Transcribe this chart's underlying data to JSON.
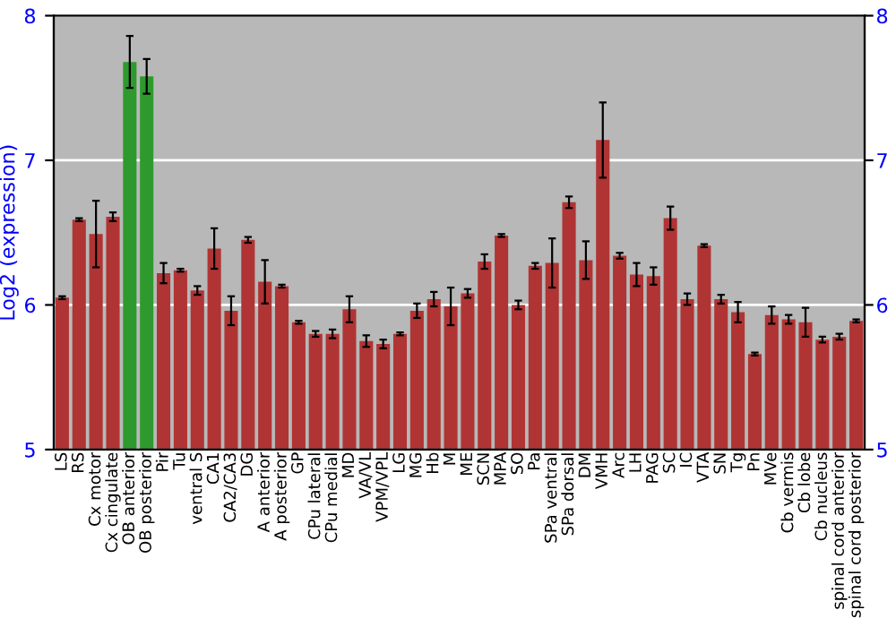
{
  "chart_data": {
    "type": "bar",
    "ylabel": "Log2 (expression)",
    "categories": [
      "LS",
      "RS",
      "Cx motor",
      "Cx cingulate",
      "OB anterior",
      "OB posterior",
      "Pir",
      "Tu",
      "ventral S",
      "CA1",
      "CA2/CA3",
      "DG",
      "A anterior",
      "A posterior",
      "GP",
      "CPu lateral",
      "CPu medial",
      "MD",
      "VA/VL",
      "VPM/VPL",
      "LG",
      "MG",
      "Hb",
      "M",
      "ME",
      "SCN",
      "MPA",
      "SO",
      "Pa",
      "SPa ventral",
      "SPa dorsal",
      "DM",
      "VMH",
      "Arc",
      "LH",
      "PAG",
      "SC",
      "IC",
      "VTA",
      "SN",
      "Tg",
      "Pn",
      "MVe",
      "Cb vermis",
      "Cb lobe",
      "Cb nucleus",
      "spinal cord anterior",
      "spinal cord posterior"
    ],
    "values": [
      6.05,
      6.59,
      6.49,
      6.61,
      7.68,
      7.58,
      6.22,
      6.24,
      6.1,
      6.39,
      5.96,
      6.45,
      6.16,
      6.13,
      5.88,
      5.8,
      5.8,
      5.97,
      5.75,
      5.73,
      5.8,
      5.96,
      6.04,
      5.99,
      6.08,
      6.3,
      6.48,
      6.0,
      6.27,
      6.29,
      6.71,
      6.31,
      7.14,
      6.34,
      6.21,
      6.2,
      6.6,
      6.04,
      6.41,
      6.04,
      5.95,
      5.66,
      5.93,
      5.9,
      5.88,
      5.76,
      5.78,
      5.89
    ],
    "errors": [
      0.01,
      0.01,
      0.23,
      0.03,
      0.18,
      0.12,
      0.07,
      0.01,
      0.03,
      0.14,
      0.1,
      0.02,
      0.15,
      0.01,
      0.01,
      0.02,
      0.03,
      0.09,
      0.04,
      0.03,
      0.01,
      0.05,
      0.05,
      0.13,
      0.03,
      0.05,
      0.01,
      0.03,
      0.02,
      0.17,
      0.04,
      0.13,
      0.26,
      0.02,
      0.08,
      0.06,
      0.08,
      0.04,
      0.01,
      0.03,
      0.07,
      0.01,
      0.06,
      0.03,
      0.1,
      0.02,
      0.02,
      0.01
    ],
    "colors": [
      "#b03434",
      "#b03434",
      "#b03434",
      "#b03434",
      "#2e9a2e",
      "#2e9a2e",
      "#b03434",
      "#b03434",
      "#b03434",
      "#b03434",
      "#b03434",
      "#b03434",
      "#b03434",
      "#b03434",
      "#b03434",
      "#b03434",
      "#b03434",
      "#b03434",
      "#b03434",
      "#b03434",
      "#b03434",
      "#b03434",
      "#b03434",
      "#b03434",
      "#b03434",
      "#b03434",
      "#b03434",
      "#b03434",
      "#b03434",
      "#b03434",
      "#b03434",
      "#b03434",
      "#b03434",
      "#b03434",
      "#b03434",
      "#b03434",
      "#b03434",
      "#b03434",
      "#b03434",
      "#b03434",
      "#b03434",
      "#b03434",
      "#b03434",
      "#b03434",
      "#b03434",
      "#b03434",
      "#b03434",
      "#b03434"
    ],
    "ylim": [
      5,
      8
    ],
    "yticks": [
      5,
      6,
      7,
      8
    ],
    "y2lim": [
      5,
      8
    ],
    "y2ticks": [
      5,
      6,
      7,
      8
    ],
    "grid": "y"
  }
}
